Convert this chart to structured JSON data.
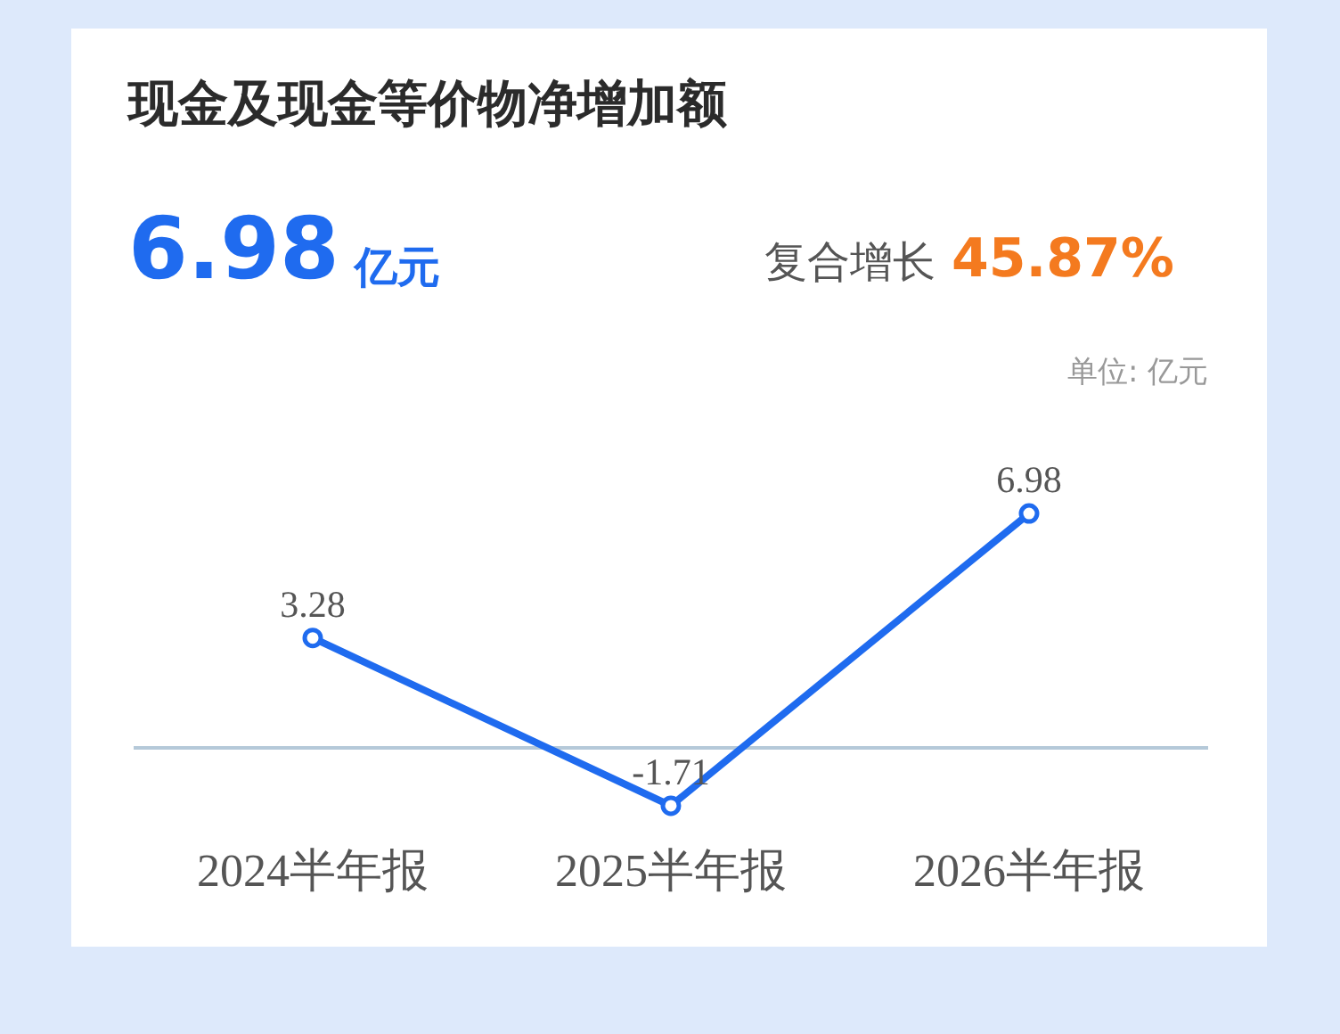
{
  "chart_data": {
    "type": "line",
    "title": "现金及现金等价物净增加额",
    "annotations": [
      "6.98",
      "亿元",
      "复合增长",
      "45.87%",
      "单位: 亿元"
    ],
    "categories": [
      "2024半年报",
      "2025半年报",
      "2026半年报"
    ],
    "series": [
      {
        "color": "#1f6bef",
        "values": [
          3.28,
          -1.71,
          6.98
        ]
      }
    ],
    "data_labels": true,
    "marker": "circle",
    "line_style": "solid",
    "legend": false
  }
}
